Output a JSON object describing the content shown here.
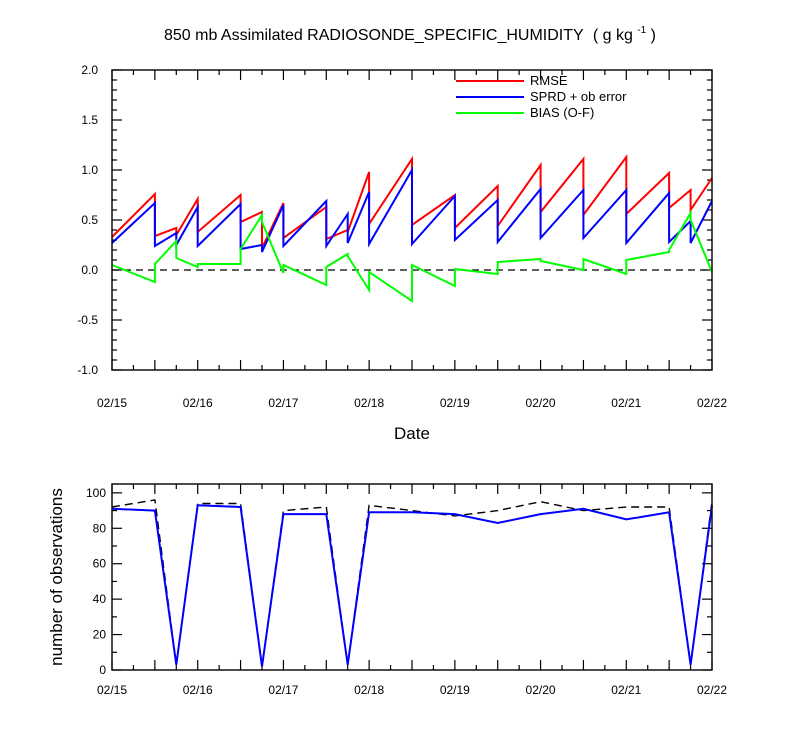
{
  "chart_data": [
    {
      "type": "line",
      "title": "850 mb Assimilated RADIOSONDE_SPECIFIC_HUMIDITY",
      "title_units": "( g kg",
      "title_units_sup": "-1",
      "title_units_end": " )",
      "xlabel": "Date",
      "ylabel": "",
      "xticks": [
        "02/15",
        "02/16",
        "02/17",
        "02/18",
        "02/19",
        "02/20",
        "02/21",
        "02/22"
      ],
      "xlim": [
        0,
        7
      ],
      "ylim": [
        -1.0,
        2.0
      ],
      "yticks": [
        "-1.0",
        "-0.5",
        "0.0",
        "0.5",
        "1.0",
        "1.5",
        "2.0"
      ],
      "legend_position": "top-right",
      "reference_line": 0.0,
      "series": [
        {
          "name": "RMSE",
          "color": "#ff0000",
          "x": [
            0,
            0.5,
            0.5,
            0.75,
            0.75,
            1.0,
            1.0,
            1.5,
            1.5,
            1.75,
            1.75,
            2.0,
            2.0,
            2.5,
            2.5,
            2.75,
            2.75,
            3.0,
            3.0,
            3.5,
            3.5,
            4.0,
            4.0,
            4.5,
            4.5,
            5.0,
            5.0,
            5.5,
            5.5,
            6.0,
            6.0,
            6.5,
            6.5,
            6.75,
            6.75,
            7.0
          ],
          "y": [
            0.33,
            0.76,
            0.34,
            0.42,
            0.35,
            0.71,
            0.38,
            0.75,
            0.48,
            0.58,
            0.22,
            0.67,
            0.32,
            0.63,
            0.31,
            0.4,
            0.38,
            0.98,
            0.46,
            1.11,
            0.45,
            0.75,
            0.42,
            0.84,
            0.44,
            1.05,
            0.58,
            1.11,
            0.55,
            1.13,
            0.56,
            0.97,
            0.62,
            0.8,
            0.6,
            0.92
          ]
        },
        {
          "name": "SPRD + ob error",
          "color": "#0000ff",
          "x": [
            0,
            0.5,
            0.5,
            0.75,
            0.75,
            1.0,
            1.0,
            1.5,
            1.5,
            1.75,
            1.75,
            2.0,
            2.0,
            2.5,
            2.5,
            2.75,
            2.75,
            3.0,
            3.0,
            3.5,
            3.5,
            4.0,
            4.0,
            4.5,
            4.5,
            5.0,
            5.0,
            5.5,
            5.5,
            6.0,
            6.0,
            6.5,
            6.5,
            6.75,
            6.75,
            7.0
          ],
          "y": [
            0.27,
            0.67,
            0.24,
            0.37,
            0.25,
            0.63,
            0.24,
            0.66,
            0.21,
            0.25,
            0.18,
            0.65,
            0.24,
            0.69,
            0.24,
            0.56,
            0.27,
            0.78,
            0.26,
            1.0,
            0.26,
            0.74,
            0.3,
            0.7,
            0.28,
            0.81,
            0.32,
            0.8,
            0.32,
            0.8,
            0.27,
            0.77,
            0.28,
            0.49,
            0.27,
            0.69
          ]
        },
        {
          "name": "BIAS (O-F)",
          "color": "#00ff00",
          "x": [
            0,
            0.5,
            0.5,
            0.75,
            0.75,
            1.0,
            1.0,
            1.5,
            1.5,
            1.75,
            1.75,
            2.0,
            2.0,
            2.5,
            2.5,
            2.75,
            2.75,
            3.0,
            3.0,
            3.5,
            3.5,
            4.0,
            4.0,
            4.5,
            4.5,
            5.0,
            5.0,
            5.5,
            5.5,
            6.0,
            6.0,
            6.5,
            6.5,
            6.75,
            6.75,
            7.0
          ],
          "y": [
            0.05,
            -0.12,
            0.06,
            0.29,
            0.12,
            0.03,
            0.06,
            0.06,
            0.21,
            0.55,
            0.48,
            -0.03,
            0.05,
            -0.15,
            0.03,
            0.16,
            0.14,
            -0.2,
            -0.02,
            -0.31,
            0.05,
            -0.16,
            0.01,
            -0.04,
            0.08,
            0.11,
            0.09,
            0.0,
            0.11,
            -0.04,
            0.1,
            0.18,
            0.2,
            0.57,
            0.5,
            -0.02
          ]
        }
      ]
    },
    {
      "type": "line",
      "title": "",
      "xlabel": "",
      "ylabel": "number of observations",
      "xticks": [
        "02/15",
        "02/16",
        "02/17",
        "02/18",
        "02/19",
        "02/20",
        "02/21",
        "02/22"
      ],
      "xlim": [
        0,
        7
      ],
      "ylim": [
        0,
        105
      ],
      "yticks": [
        "0",
        "20",
        "40",
        "60",
        "80",
        "100"
      ],
      "series": [
        {
          "color": "#000000",
          "dashed": true,
          "x": [
            0,
            0.5,
            0.75,
            1.0,
            1.5,
            1.75,
            2.0,
            2.5,
            2.75,
            3.0,
            3.5,
            4.0,
            4.5,
            5.0,
            5.5,
            6.0,
            6.5,
            6.75,
            7.0
          ],
          "y": [
            92,
            96,
            3,
            94,
            94,
            2,
            90,
            92,
            3,
            93,
            90,
            87,
            90,
            95,
            90,
            92,
            92,
            3,
            95
          ]
        },
        {
          "color": "#0000ff",
          "x": [
            0,
            0.5,
            0.75,
            1.0,
            1.5,
            1.75,
            2.0,
            2.5,
            2.75,
            3.0,
            3.5,
            4.0,
            4.5,
            5.0,
            5.5,
            6.0,
            6.5,
            6.75,
            7.0
          ],
          "y": [
            91,
            90,
            3,
            93,
            92,
            2,
            88,
            88,
            3,
            89,
            89,
            88,
            83,
            88,
            91,
            85,
            89,
            3,
            93
          ]
        }
      ]
    }
  ]
}
